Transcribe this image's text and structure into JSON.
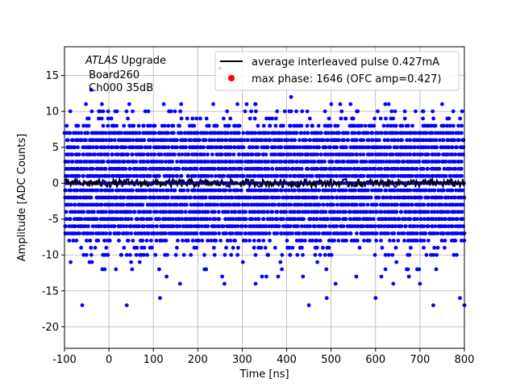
{
  "chart_data": {
    "type": "scatter",
    "title": "",
    "xlabel": "Time [ns]",
    "ylabel": "Amplitude [ADC Counts]",
    "xlim": [
      -100,
      800
    ],
    "ylim": [
      -23,
      19
    ],
    "xticks": [
      -100,
      0,
      100,
      200,
      300,
      400,
      500,
      600,
      700,
      800
    ],
    "yticks": [
      -20,
      -15,
      -10,
      -5,
      0,
      5,
      10,
      15
    ],
    "grid": true,
    "legend_position": "top-right",
    "annotation": {
      "experiment_italic": "ATLAS",
      "line1_rest": " Upgrade",
      "line2": " Board260",
      "line3": " Ch000 35dB"
    },
    "colors": {
      "points": "#0000ff",
      "average_line": "#000000",
      "max_phase": "#ff0000"
    },
    "series": [
      {
        "name": "average interleaved pulse 0.427mA",
        "kind": "line",
        "x_range": [
          -100,
          800
        ],
        "y_mean": 0.0,
        "y_jitter": 0.6
      },
      {
        "name": "max phase: 1646 (OFC amp=0.427)",
        "kind": "marker"
      },
      {
        "name": "",
        "kind": "dense_points",
        "x_range": [
          -100,
          800
        ],
        "y_levels_core": [
          -7,
          7
        ],
        "y_levels_extended": [
          -13,
          11
        ],
        "x_step_ns": 5
      }
    ],
    "outliers": [
      {
        "x": -60,
        "y": -17
      },
      {
        "x": -40,
        "y": 13
      },
      {
        "x": -20,
        "y": 10
      },
      {
        "x": 40,
        "y": -17
      },
      {
        "x": 115,
        "y": -16
      },
      {
        "x": 140,
        "y": 10
      },
      {
        "x": 250,
        "y": 16
      },
      {
        "x": 330,
        "y": 11
      },
      {
        "x": 330,
        "y": -14
      },
      {
        "x": 410,
        "y": 12
      },
      {
        "x": 450,
        "y": -17
      },
      {
        "x": 490,
        "y": -16
      },
      {
        "x": 560,
        "y": 10
      },
      {
        "x": 600,
        "y": -16
      },
      {
        "x": 690,
        "y": 10
      },
      {
        "x": 730,
        "y": -17
      },
      {
        "x": 750,
        "y": 11
      },
      {
        "x": 790,
        "y": -16
      },
      {
        "x": 800,
        "y": -17
      },
      {
        "x": 775,
        "y": 10
      },
      {
        "x": 160,
        "y": -14
      },
      {
        "x": 260,
        "y": -14
      },
      {
        "x": 510,
        "y": -14
      },
      {
        "x": 640,
        "y": -14
      },
      {
        "x": 700,
        "y": -14
      }
    ]
  }
}
